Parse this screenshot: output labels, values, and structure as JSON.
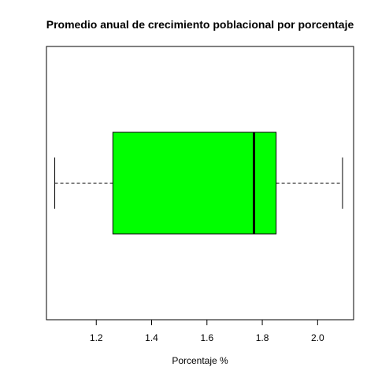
{
  "chart_data": {
    "type": "boxplot",
    "orientation": "horizontal",
    "title": "Promedio anual de crecimiento poblacional por porcentaje",
    "xlabel": "Porcentaje %",
    "ylabel": "",
    "xlim": [
      1.02,
      2.13
    ],
    "ticks": [
      1.2,
      1.4,
      1.6,
      1.8,
      2.0
    ],
    "tick_labels": [
      "1.2",
      "1.4",
      "1.6",
      "1.8",
      "2.0"
    ],
    "stats": {
      "whisker_low": 1.05,
      "q1": 1.26,
      "median": 1.77,
      "q3": 1.85,
      "whisker_high": 2.09
    },
    "box_color": "#00ff00",
    "line_color": "#000000"
  }
}
